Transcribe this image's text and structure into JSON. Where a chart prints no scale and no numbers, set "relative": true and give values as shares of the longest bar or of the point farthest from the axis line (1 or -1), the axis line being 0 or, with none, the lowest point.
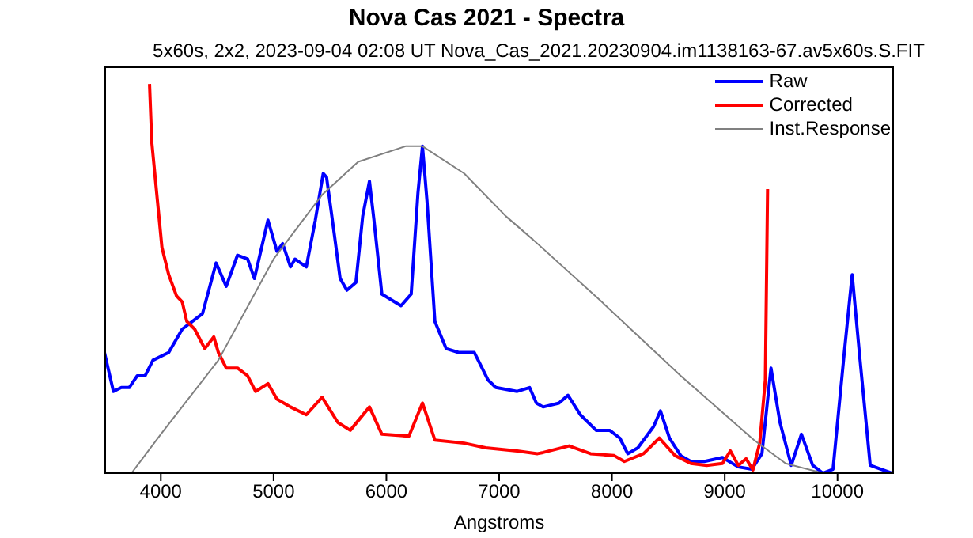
{
  "chart_data": {
    "type": "line",
    "title": "Nova Cas 2021 - Spectra",
    "subtitle": "5x60s, 2x2, 2023-09-04 02:08 UT Nova_Cas_2021.20230904.im1138163-67.av5x60s.S.FIT",
    "xlabel": "Angstroms",
    "relative": true,
    "xlim": [
      3500,
      10500
    ],
    "xticks": [
      4000,
      5000,
      6000,
      7000,
      8000,
      9000,
      10000
    ],
    "tick_labels": "x",
    "grid": false,
    "legend": "top right",
    "marker": "none",
    "line_style": "solid",
    "series": [
      {
        "name": "Raw",
        "color": "#0000ff",
        "x": [
          3500,
          3580,
          3650,
          3720,
          3790,
          3860,
          3930,
          4070,
          4190,
          4370,
          4490,
          4580,
          4680,
          4770,
          4830,
          4950,
          5030,
          5080,
          5150,
          5190,
          5290,
          5370,
          5440,
          5470,
          5540,
          5590,
          5650,
          5730,
          5790,
          5850,
          5890,
          5960,
          6130,
          6220,
          6280,
          6320,
          6360,
          6430,
          6530,
          6640,
          6780,
          6900,
          6970,
          7160,
          7270,
          7330,
          7390,
          7530,
          7610,
          7720,
          7860,
          7980,
          8070,
          8140,
          8230,
          8370,
          8430,
          8510,
          8610,
          8700,
          8820,
          8980,
          9120,
          9240,
          9330,
          9410,
          9490,
          9590,
          9680,
          9780,
          9870,
          9960,
          10060,
          10130,
          10200,
          10290,
          10480
        ],
        "values": [
          0.31,
          0.21,
          0.22,
          0.22,
          0.25,
          0.25,
          0.29,
          0.31,
          0.37,
          0.41,
          0.54,
          0.48,
          0.56,
          0.55,
          0.5,
          0.65,
          0.57,
          0.59,
          0.53,
          0.55,
          0.53,
          0.65,
          0.77,
          0.76,
          0.61,
          0.5,
          0.47,
          0.49,
          0.66,
          0.75,
          0.65,
          0.46,
          0.43,
          0.46,
          0.72,
          0.84,
          0.7,
          0.39,
          0.32,
          0.31,
          0.31,
          0.24,
          0.22,
          0.21,
          0.22,
          0.18,
          0.17,
          0.18,
          0.2,
          0.15,
          0.11,
          0.11,
          0.09,
          0.05,
          0.065,
          0.12,
          0.16,
          0.09,
          0.045,
          0.03,
          0.03,
          0.04,
          0.016,
          0.01,
          0.05,
          0.27,
          0.13,
          0.02,
          0.1,
          0.02,
          0,
          0.01,
          0.31,
          0.51,
          0.29,
          0.02,
          0
        ]
      },
      {
        "name": "Corrected",
        "color": "#ff0000",
        "x": [
          3900,
          3920,
          3970,
          4010,
          4070,
          4140,
          4190,
          4230,
          4300,
          4390,
          4470,
          4510,
          4580,
          4680,
          4770,
          4840,
          4950,
          5030,
          5150,
          5290,
          5430,
          5570,
          5680,
          5850,
          5960,
          6200,
          6320,
          6430,
          6690,
          6880,
          7160,
          7340,
          7390,
          7620,
          7810,
          8020,
          8110,
          8280,
          8420,
          8560,
          8700,
          8840,
          8980,
          9050,
          9120,
          9190,
          9250,
          9310,
          9360,
          9380
        ],
        "values": [
          1,
          0.85,
          0.7,
          0.58,
          0.51,
          0.455,
          0.44,
          0.39,
          0.37,
          0.32,
          0.35,
          0.31,
          0.27,
          0.27,
          0.25,
          0.21,
          0.23,
          0.19,
          0.17,
          0.15,
          0.195,
          0.13,
          0.11,
          0.17,
          0.1,
          0.095,
          0.18,
          0.085,
          0.077,
          0.065,
          0.057,
          0.05,
          0.053,
          0.07,
          0.05,
          0.045,
          0.03,
          0.05,
          0.09,
          0.045,
          0.025,
          0.02,
          0.025,
          0.057,
          0.02,
          0.037,
          0.008,
          0.077,
          0.24,
          0.73
        ]
      },
      {
        "name": "Inst.Response",
        "color": "#808080",
        "x": [
          3740,
          4000,
          4510,
          5000,
          5430,
          5750,
          6170,
          6320,
          6690,
          7060,
          7300,
          7910,
          8610,
          9260,
          9540,
          9870,
          10480
        ],
        "values": [
          0,
          0.1,
          0.29,
          0.55,
          0.715,
          0.8,
          0.84,
          0.84,
          0.77,
          0.66,
          0.6,
          0.44,
          0.25,
          0.085,
          0.025,
          0,
          0
        ]
      }
    ]
  }
}
